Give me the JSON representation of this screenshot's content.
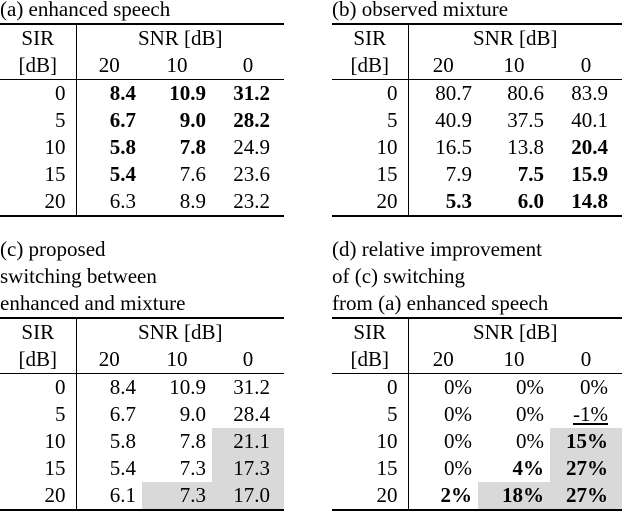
{
  "header_labels": {
    "sir": "SIR",
    "sir_unit": "[dB]",
    "snr": "SNR [dB]",
    "snr_values": [
      "20",
      "10",
      "0"
    ]
  },
  "panels": [
    {
      "id": "a",
      "caption": [
        "(a) enhanced speech"
      ],
      "rows": [
        {
          "sir": "0",
          "cells": [
            {
              "v": "8.4",
              "bold": true
            },
            {
              "v": "10.9",
              "bold": true
            },
            {
              "v": "31.2",
              "bold": true
            }
          ]
        },
        {
          "sir": "5",
          "cells": [
            {
              "v": "6.7",
              "bold": true
            },
            {
              "v": "9.0",
              "bold": true
            },
            {
              "v": "28.2",
              "bold": true
            }
          ]
        },
        {
          "sir": "10",
          "cells": [
            {
              "v": "5.8",
              "bold": true
            },
            {
              "v": "7.8",
              "bold": true
            },
            {
              "v": "24.9"
            }
          ]
        },
        {
          "sir": "15",
          "cells": [
            {
              "v": "5.4",
              "bold": true
            },
            {
              "v": "7.6"
            },
            {
              "v": "23.6"
            }
          ]
        },
        {
          "sir": "20",
          "cells": [
            {
              "v": "6.3"
            },
            {
              "v": "8.9"
            },
            {
              "v": "23.2"
            }
          ]
        }
      ]
    },
    {
      "id": "b",
      "caption": [
        "(b) observed mixture"
      ],
      "rows": [
        {
          "sir": "0",
          "cells": [
            {
              "v": "80.7"
            },
            {
              "v": "80.6"
            },
            {
              "v": "83.9"
            }
          ]
        },
        {
          "sir": "5",
          "cells": [
            {
              "v": "40.9"
            },
            {
              "v": "37.5"
            },
            {
              "v": "40.1"
            }
          ]
        },
        {
          "sir": "10",
          "cells": [
            {
              "v": "16.5"
            },
            {
              "v": "13.8"
            },
            {
              "v": "20.4",
              "bold": true
            }
          ]
        },
        {
          "sir": "15",
          "cells": [
            {
              "v": "7.9"
            },
            {
              "v": "7.5",
              "bold": true
            },
            {
              "v": "15.9",
              "bold": true
            }
          ]
        },
        {
          "sir": "20",
          "cells": [
            {
              "v": "5.3",
              "bold": true
            },
            {
              "v": "6.0",
              "bold": true
            },
            {
              "v": "14.8",
              "bold": true
            }
          ]
        }
      ]
    },
    {
      "id": "c",
      "caption": [
        "(c) proposed",
        "switching between",
        "enhanced and mixture"
      ],
      "rows": [
        {
          "sir": "0",
          "cells": [
            {
              "v": "8.4"
            },
            {
              "v": "10.9"
            },
            {
              "v": "31.2"
            }
          ]
        },
        {
          "sir": "5",
          "cells": [
            {
              "v": "6.7"
            },
            {
              "v": "9.0"
            },
            {
              "v": "28.4"
            }
          ]
        },
        {
          "sir": "10",
          "cells": [
            {
              "v": "5.8"
            },
            {
              "v": "7.8"
            },
            {
              "v": "21.1",
              "shade": true
            }
          ]
        },
        {
          "sir": "15",
          "cells": [
            {
              "v": "5.4"
            },
            {
              "v": "7.3"
            },
            {
              "v": "17.3",
              "shade": true
            }
          ]
        },
        {
          "sir": "20",
          "cells": [
            {
              "v": "6.1"
            },
            {
              "v": "7.3",
              "shade": true
            },
            {
              "v": "17.0",
              "shade": true
            }
          ]
        }
      ]
    },
    {
      "id": "d",
      "caption": [
        "(d) relative improvement",
        "of (c) switching",
        "from (a) enhanced speech"
      ],
      "rows": [
        {
          "sir": "0",
          "cells": [
            {
              "v": "0%"
            },
            {
              "v": "0%"
            },
            {
              "v": "0%"
            }
          ]
        },
        {
          "sir": "5",
          "cells": [
            {
              "v": "0%"
            },
            {
              "v": "0%"
            },
            {
              "v": "-1%",
              "underline": true
            }
          ]
        },
        {
          "sir": "10",
          "cells": [
            {
              "v": "0%"
            },
            {
              "v": "0%"
            },
            {
              "v": "15%",
              "bold": true,
              "shade": true
            }
          ]
        },
        {
          "sir": "15",
          "cells": [
            {
              "v": "0%"
            },
            {
              "v": "4%",
              "bold": true
            },
            {
              "v": "27%",
              "bold": true,
              "shade": true
            }
          ]
        },
        {
          "sir": "20",
          "cells": [
            {
              "v": "2%",
              "bold": true
            },
            {
              "v": "18%",
              "bold": true,
              "shade": true
            },
            {
              "v": "27%",
              "bold": true,
              "shade": true
            }
          ]
        }
      ]
    }
  ]
}
